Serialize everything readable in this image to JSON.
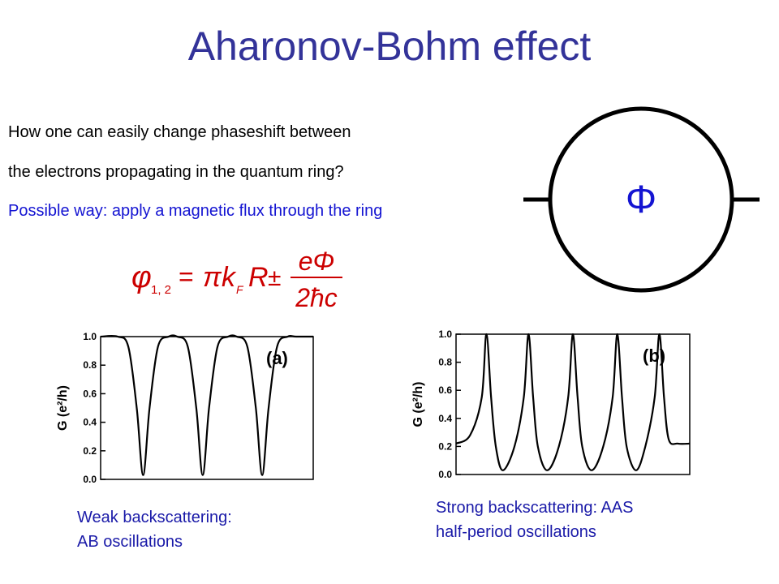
{
  "slide": {
    "title": "Aharonov-Bohm effect",
    "intro_lines": [
      "How one can easily change phaseshift between",
      "the electrons propagating in the quantum ring?"
    ],
    "highlight_line": "Possible way: apply a magnetic flux through the ring",
    "ring_symbol": "Φ",
    "formula": {
      "lhs_symbol": "φ",
      "lhs_subscript": "1, 2",
      "equals": "=",
      "pi": "π",
      "k": "k",
      "k_subscript": "F",
      "R": "R",
      "pm": "±",
      "numerator": "eΦ",
      "denominator": "2ħc"
    }
  },
  "captions": {
    "left": [
      "Weak backscattering:",
      "AB oscillations"
    ],
    "right": [
      "Strong backscattering: AAS",
      "half-period oscillations"
    ]
  },
  "colors": {
    "title": "#333399",
    "highlight": "#1414d2",
    "formula": "#cc0000",
    "caption": "#1a1aa8",
    "ring_symbol": "#1414d2"
  },
  "chart_data": [
    {
      "type": "line",
      "panel_label": "(a)",
      "ylabel": "G (e²/h)",
      "ytick_labels": [
        "1.0",
        "0.8",
        "0.6",
        "0.4",
        "0.2",
        "0.0"
      ],
      "ylim": [
        0,
        1.0
      ],
      "x": [
        0,
        0.08,
        0.13,
        0.17,
        0.2,
        0.23,
        0.27,
        0.32,
        0.36,
        0.41,
        0.45,
        0.48,
        0.51,
        0.55,
        0.6,
        0.64,
        0.69,
        0.73,
        0.76,
        0.79,
        0.83,
        0.88,
        0.92,
        1.0
      ],
      "series": [
        {
          "values": [
            1.0,
            1.0,
            0.93,
            0.5,
            0.03,
            0.5,
            0.93,
            1.0,
            1.0,
            0.93,
            0.5,
            0.03,
            0.5,
            0.93,
            1.0,
            1.0,
            0.93,
            0.5,
            0.03,
            0.5,
            0.93,
            1.0,
            1.0,
            1.0
          ]
        }
      ]
    },
    {
      "type": "line",
      "panel_label": "(b)",
      "ylabel": "G (e²/h)",
      "ytick_labels": [
        "1.0",
        "0.8",
        "0.6",
        "0.4",
        "0.2",
        "0.0"
      ],
      "ylim": [
        0,
        1.0
      ],
      "x": [
        0,
        0.06,
        0.11,
        0.13,
        0.15,
        0.17,
        0.2,
        0.25,
        0.29,
        0.31,
        0.33,
        0.35,
        0.39,
        0.44,
        0.48,
        0.5,
        0.52,
        0.54,
        0.58,
        0.63,
        0.67,
        0.69,
        0.71,
        0.73,
        0.77,
        0.81,
        0.85,
        0.87,
        0.89,
        0.91,
        0.95,
        1.0
      ],
      "series": [
        {
          "values": [
            0.22,
            0.28,
            0.55,
            1.0,
            0.55,
            0.2,
            0.03,
            0.2,
            0.55,
            1.0,
            0.55,
            0.2,
            0.03,
            0.2,
            0.55,
            1.0,
            0.55,
            0.2,
            0.03,
            0.2,
            0.55,
            1.0,
            0.55,
            0.2,
            0.03,
            0.2,
            0.55,
            1.0,
            0.55,
            0.25,
            0.22,
            0.22
          ]
        }
      ]
    }
  ]
}
